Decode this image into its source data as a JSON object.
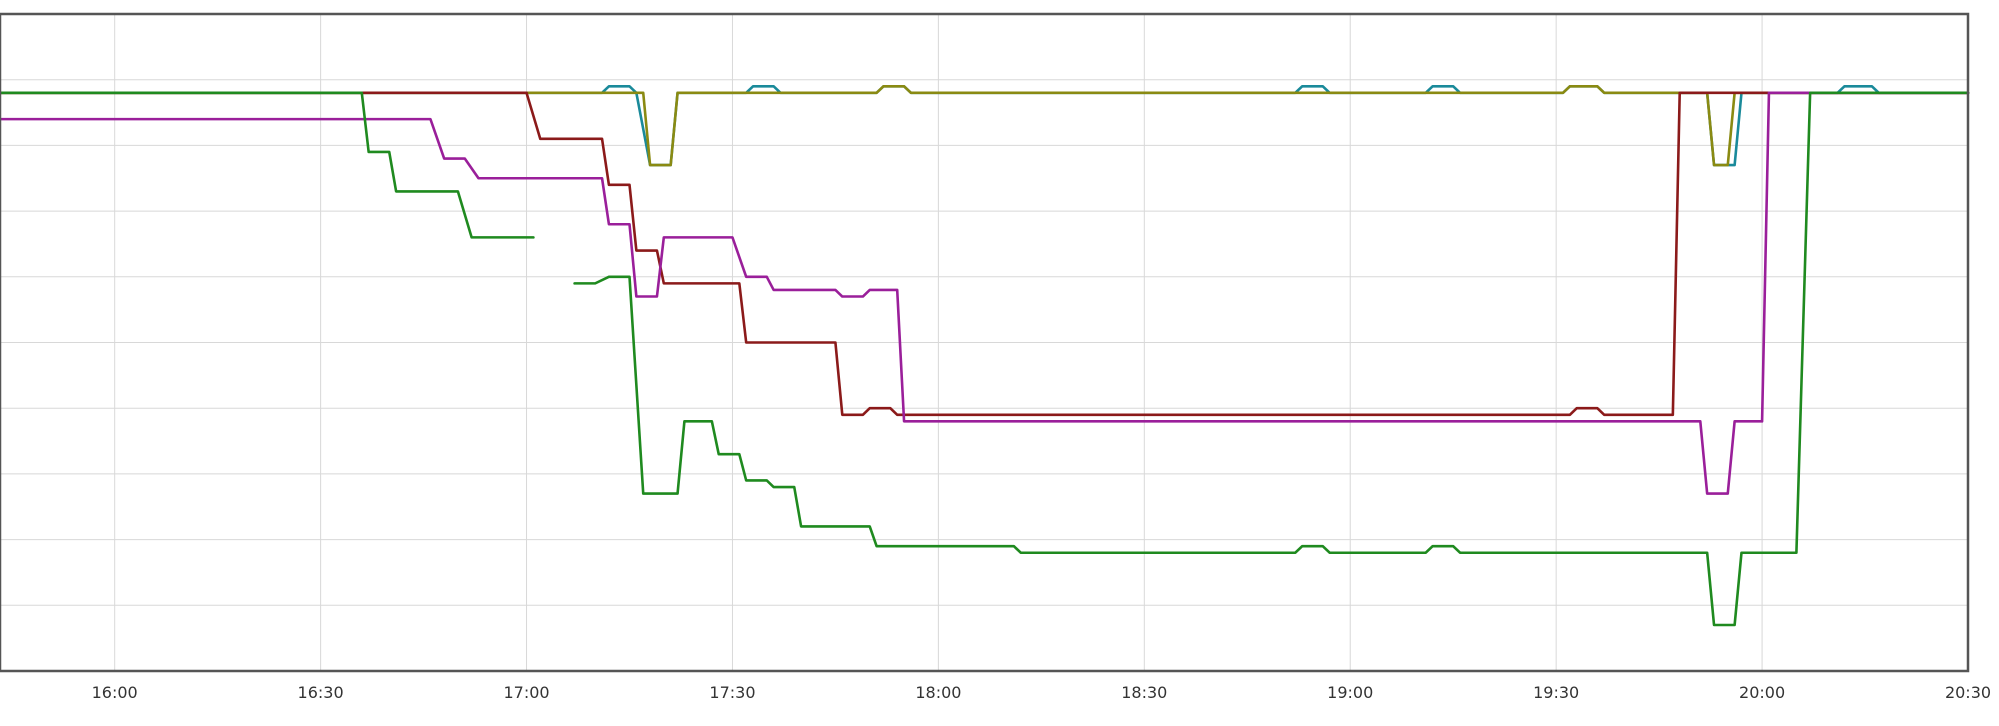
{
  "chart_data": {
    "type": "line",
    "title": "",
    "xlabel": "",
    "ylabel": "",
    "x_ticks": [
      "16:00",
      "16:30",
      "17:00",
      "17:30",
      "18:00",
      "18:30",
      "19:00",
      "19:30",
      "20:00",
      "20:30"
    ],
    "x_range": [
      "15:43",
      "20:30"
    ],
    "y_ticks_shown": false,
    "y_range": [
      0,
      10
    ],
    "grid": true,
    "series": [
      {
        "color": "#1a8a9a",
        "points": [
          [
            "15:43",
            8.8
          ],
          [
            "17:11",
            8.8
          ],
          [
            "17:12",
            8.9
          ],
          [
            "17:15",
            8.9
          ],
          [
            "17:16",
            8.8
          ],
          [
            "17:18",
            7.7
          ],
          [
            "17:21",
            7.7
          ],
          [
            "17:22",
            8.8
          ],
          [
            "17:32",
            8.8
          ],
          [
            "17:33",
            8.9
          ],
          [
            "17:36",
            8.9
          ],
          [
            "17:37",
            8.8
          ],
          [
            "17:51",
            8.8
          ],
          [
            "17:52",
            8.9
          ],
          [
            "17:55",
            8.9
          ],
          [
            "17:56",
            8.8
          ],
          [
            "18:52",
            8.8
          ],
          [
            "18:53",
            8.9
          ],
          [
            "18:56",
            8.9
          ],
          [
            "18:57",
            8.8
          ],
          [
            "19:11",
            8.8
          ],
          [
            "19:12",
            8.9
          ],
          [
            "19:15",
            8.9
          ],
          [
            "19:16",
            8.8
          ],
          [
            "19:31",
            8.8
          ],
          [
            "19:32",
            8.9
          ],
          [
            "19:36",
            8.9
          ],
          [
            "19:37",
            8.8
          ],
          [
            "19:52",
            8.8
          ],
          [
            "19:53",
            7.7
          ],
          [
            "19:56",
            7.7
          ],
          [
            "19:57",
            8.8
          ],
          [
            "20:11",
            8.8
          ],
          [
            "20:12",
            8.9
          ],
          [
            "20:16",
            8.9
          ],
          [
            "20:17",
            8.8
          ],
          [
            "20:30",
            8.8
          ]
        ]
      },
      {
        "color": "#8a8a12",
        "points": [
          [
            "15:43",
            8.8
          ],
          [
            "17:17",
            8.8
          ],
          [
            "17:18",
            7.7
          ],
          [
            "17:21",
            7.7
          ],
          [
            "17:22",
            8.8
          ],
          [
            "17:51",
            8.8
          ],
          [
            "17:52",
            8.9
          ],
          [
            "17:55",
            8.9
          ],
          [
            "17:56",
            8.8
          ],
          [
            "19:31",
            8.8
          ],
          [
            "19:32",
            8.9
          ],
          [
            "19:36",
            8.9
          ],
          [
            "19:37",
            8.8
          ],
          [
            "19:52",
            8.8
          ],
          [
            "19:53",
            7.7
          ],
          [
            "19:55",
            7.7
          ],
          [
            "19:56",
            8.8
          ],
          [
            "20:30",
            8.8
          ]
        ]
      },
      {
        "color": "#8b1a1a",
        "segments": [
          [
            [
              "15:43",
              8.8
            ],
            [
              "17:00",
              8.8
            ]
          ],
          [
            [
              "17:00",
              8.8
            ],
            [
              "17:02",
              8.1
            ],
            [
              "17:11",
              8.1
            ],
            [
              "17:12",
              7.4
            ],
            [
              "17:15",
              7.4
            ],
            [
              "17:16",
              6.4
            ],
            [
              "17:19",
              6.4
            ],
            [
              "17:20",
              5.9
            ],
            [
              "17:31",
              5.9
            ],
            [
              "17:32",
              5.0
            ],
            [
              "17:45",
              5.0
            ],
            [
              "17:46",
              3.9
            ],
            [
              "17:49",
              3.9
            ],
            [
              "17:50",
              4.0
            ],
            [
              "17:53",
              4.0
            ],
            [
              "17:54",
              3.9
            ],
            [
              "19:32",
              3.9
            ],
            [
              "19:33",
              4.0
            ],
            [
              "19:36",
              4.0
            ],
            [
              "19:37",
              3.9
            ],
            [
              "19:47",
              3.9
            ],
            [
              "19:48",
              8.8
            ],
            [
              "20:30",
              8.8
            ]
          ]
        ]
      },
      {
        "color": "#9a1f9a",
        "points": [
          [
            "15:43",
            8.4
          ],
          [
            "16:46",
            8.4
          ],
          [
            "16:48",
            7.8
          ],
          [
            "16:51",
            7.8
          ],
          [
            "16:53",
            7.5
          ],
          [
            "17:11",
            7.5
          ],
          [
            "17:12",
            6.8
          ],
          [
            "17:15",
            6.8
          ],
          [
            "17:16",
            5.7
          ],
          [
            "17:19",
            5.7
          ],
          [
            "17:20",
            6.6
          ],
          [
            "17:30",
            6.6
          ],
          [
            "17:32",
            6.0
          ],
          [
            "17:35",
            6.0
          ],
          [
            "17:36",
            5.8
          ],
          [
            "17:45",
            5.8
          ],
          [
            "17:46",
            5.7
          ],
          [
            "17:49",
            5.7
          ],
          [
            "17:50",
            5.8
          ],
          [
            "17:54",
            5.8
          ],
          [
            "17:55",
            3.8
          ],
          [
            "19:51",
            3.8
          ],
          [
            "19:52",
            2.7
          ],
          [
            "19:55",
            2.7
          ],
          [
            "19:56",
            3.8
          ],
          [
            "20:00",
            3.8
          ],
          [
            "20:01",
            8.8
          ],
          [
            "20:30",
            8.8
          ]
        ]
      },
      {
        "color": "#1f8a1f",
        "segments": [
          [
            [
              "15:43",
              8.8
            ],
            [
              "16:36",
              8.8
            ],
            [
              "16:37",
              7.9
            ],
            [
              "16:40",
              7.9
            ],
            [
              "16:41",
              7.3
            ],
            [
              "16:50",
              7.3
            ],
            [
              "16:52",
              6.6
            ],
            [
              "17:01",
              6.6
            ]
          ],
          [
            [
              "17:07",
              5.9
            ],
            [
              "17:10",
              5.9
            ],
            [
              "17:12",
              6.0
            ],
            [
              "17:15",
              6.0
            ],
            [
              "17:17",
              2.7
            ],
            [
              "17:22",
              2.7
            ],
            [
              "17:23",
              3.8
            ],
            [
              "17:27",
              3.8
            ],
            [
              "17:28",
              3.3
            ],
            [
              "17:31",
              3.3
            ],
            [
              "17:32",
              2.9
            ],
            [
              "17:35",
              2.9
            ],
            [
              "17:36",
              2.8
            ],
            [
              "17:39",
              2.8
            ],
            [
              "17:40",
              2.2
            ],
            [
              "17:50",
              2.2
            ],
            [
              "17:51",
              1.9
            ],
            [
              "18:11",
              1.9
            ],
            [
              "18:12",
              1.8
            ],
            [
              "18:52",
              1.8
            ],
            [
              "18:53",
              1.9
            ],
            [
              "18:56",
              1.9
            ],
            [
              "18:57",
              1.8
            ],
            [
              "19:11",
              1.8
            ],
            [
              "19:12",
              1.9
            ],
            [
              "19:15",
              1.9
            ],
            [
              "19:16",
              1.8
            ],
            [
              "19:52",
              1.8
            ],
            [
              "19:53",
              0.7
            ],
            [
              "19:56",
              0.7
            ],
            [
              "19:57",
              1.8
            ],
            [
              "20:05",
              1.8
            ],
            [
              "20:07",
              8.8
            ],
            [
              "20:30",
              8.8
            ]
          ]
        ]
      }
    ]
  }
}
